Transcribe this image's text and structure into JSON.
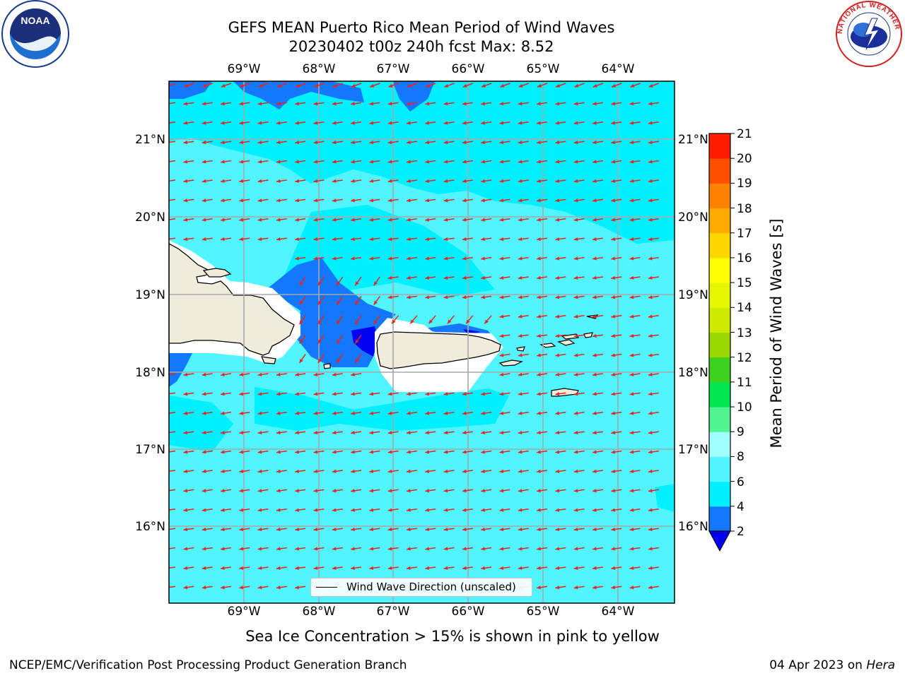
{
  "title": {
    "line1": "GEFS MEAN Puerto Rico Mean Period of Wind Waves",
    "line2": "20230402 t00z 240h fcst   Max: 8.52"
  },
  "map": {
    "lon_ticks": [
      "69°W",
      "68°W",
      "67°W",
      "66°W",
      "65°W",
      "64°W"
    ],
    "lat_ticks": [
      "21°N",
      "20°N",
      "19°N",
      "18°N",
      "17°N",
      "16°N"
    ],
    "legend_label": "Wind Wave Direction (unscaled)",
    "wave_direction": "east-northeast",
    "arrow_color": "#e8231f"
  },
  "colorbar": {
    "label": "Mean Period of Wind Waves [s]",
    "ticks": [
      "2",
      "4",
      "6",
      "8",
      "9",
      "10",
      "11",
      "12",
      "13",
      "14",
      "15",
      "16",
      "17",
      "18",
      "19",
      "20",
      "21"
    ],
    "colors": [
      "#1478ff",
      "#00f0ff",
      "#50f5ff",
      "#a0ffff",
      "#50f591",
      "#00e650",
      "#3cd21e",
      "#9bd700",
      "#cdeb00",
      "#e6f500",
      "#ffff00",
      "#ffd700",
      "#ffaa00",
      "#ff8200",
      "#ff5000",
      "#ff1e00"
    ],
    "under_color": "#0000f0"
  },
  "bottom_note": "Sea Ice Concentration > 15% is shown in pink to yellow",
  "footer": {
    "left": "NCEP/EMC/Verification Post Processing Product Generation Branch",
    "date": "04 Apr 2023 on",
    "host": "Hera"
  },
  "logos": {
    "left": "NOAA",
    "right": "NATIONAL WEATHER SERVICE"
  }
}
